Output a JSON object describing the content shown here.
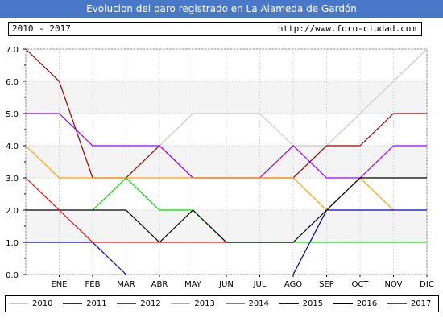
{
  "header": {
    "title": "Evolucion del paro registrado en La Alameda de Gardón",
    "years_range": "2010 - 2017",
    "url": "http://www.foro-ciudad.com"
  },
  "chart_data": {
    "type": "line",
    "title": "Evolucion del paro registrado en La Alameda de Gardón",
    "xlabel": "",
    "ylabel": "",
    "x": [
      "",
      "ENE",
      "FEB",
      "MAR",
      "ABR",
      "MAY",
      "JUN",
      "JUL",
      "AGO",
      "SEP",
      "OCT",
      "NOV",
      "DIC"
    ],
    "ylim": [
      0,
      7
    ],
    "yticks": [
      "0.0",
      "1.0",
      "2.0",
      "3.0",
      "4.0",
      "5.0",
      "6.0",
      "7.0"
    ],
    "grid": true,
    "legend_position": "bottom",
    "series": [
      {
        "name": "2010",
        "color": "#c8c8c8",
        "values": [
          null,
          null,
          null,
          3,
          4,
          5,
          5,
          5,
          4,
          4,
          5,
          6,
          7
        ]
      },
      {
        "name": "2011",
        "color": "#a00000",
        "values": [
          7,
          6,
          3,
          3,
          4,
          3,
          3,
          3,
          3,
          4,
          4,
          5,
          5
        ]
      },
      {
        "name": "2012",
        "color": "#9900ff",
        "values": [
          5,
          5,
          4,
          4,
          4,
          3,
          3,
          3,
          4,
          3,
          3,
          4,
          4
        ]
      },
      {
        "name": "2013",
        "color": "#ffa500",
        "values": [
          4,
          3,
          3,
          3,
          3,
          3,
          3,
          3,
          3,
          2,
          3,
          2,
          null
        ]
      },
      {
        "name": "2014",
        "color": "#00dd00",
        "values": [
          null,
          null,
          2,
          3,
          2,
          2,
          1,
          1,
          1,
          1,
          1,
          1,
          1
        ]
      },
      {
        "name": "2015",
        "color": "#0000cc",
        "values": [
          1,
          1,
          1,
          0,
          null,
          null,
          null,
          null,
          0,
          2,
          2,
          2,
          2
        ]
      },
      {
        "name": "2016",
        "color": "#000000",
        "values": [
          2,
          2,
          2,
          2,
          1,
          2,
          1,
          1,
          1,
          2,
          3,
          3,
          3
        ]
      },
      {
        "name": "2017",
        "color": "#ff0000",
        "values": [
          3,
          2,
          1,
          1,
          1,
          1,
          1,
          null,
          null,
          null,
          null,
          null,
          null
        ]
      }
    ]
  }
}
